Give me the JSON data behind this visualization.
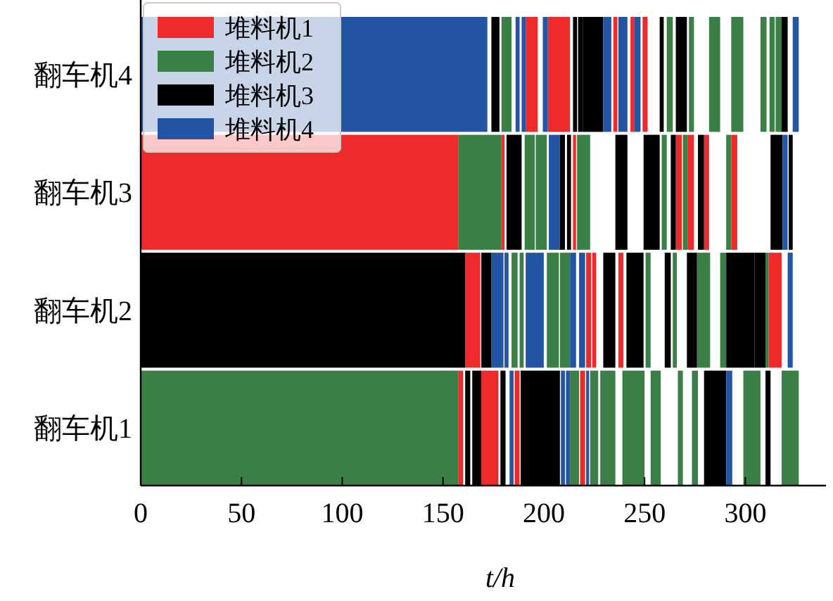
{
  "chart_data": {
    "type": "bar",
    "orientation": "horizontal",
    "xlabel": "t/h",
    "xlim": [
      0,
      340
    ],
    "xticks": [
      0,
      50,
      100,
      150,
      200,
      250,
      300
    ],
    "categories": [
      "翻车机4",
      "翻车机3",
      "翻车机2",
      "翻车机1"
    ],
    "legend": "top left",
    "series": [
      {
        "name": "堆料机1",
        "color": "#ee2a2a",
        "base": [
          191,
          0,
          161,
          157.5
        ],
        "values": [
          6,
          157.5,
          7.5,
          2.5
        ]
      },
      {
        "name": "堆料机2",
        "color": "#3a7f45",
        "base": [
          179,
          157.5,
          184,
          0
        ],
        "values": [
          5,
          21.5,
          3,
          157.5
        ]
      },
      {
        "name": "堆料机3",
        "color": "#000000",
        "base": [
          174,
          181.5,
          0,
          161
        ],
        "values": [
          4,
          7.5,
          161,
          2.5
        ]
      },
      {
        "name": "堆料机4",
        "color": "#2455a4",
        "base": [
          0,
          202.5,
          174,
          183
        ],
        "values": [
          172,
          5.5,
          6,
          2
        ]
      },
      {
        "color": "#ee2a2a",
        "base": [
          202,
          179,
          221,
          169
        ],
        "values": [
          11,
          1.5,
          2.5,
          8.5
        ]
      },
      {
        "color": "#ee2a2a",
        "base": [
          234.5,
          214.5,
          224,
          185.5
        ],
        "values": [
          2,
          1.5,
          2,
          2.5
        ]
      },
      {
        "color": "#ee2a2a",
        "base": [
          243,
          265.5,
          237,
          218
        ],
        "values": [
          2,
          3,
          2.5,
          2.5
        ]
      },
      {
        "color": "#ee2a2a",
        "base": [
          249,
          271.5,
          311.5,
          null
        ],
        "values": [
          2.5,
          3,
          6.5,
          null
        ]
      },
      {
        "color": "#ee2a2a",
        "base": [
          null,
          279.5,
          null,
          null
        ],
        "values": [
          null,
          2.5,
          null,
          null
        ]
      },
      {
        "color": "#ee2a2a",
        "base": [
          null,
          293,
          null,
          null
        ],
        "values": [
          null,
          3,
          null,
          null
        ]
      },
      {
        "color": "#3a7f45",
        "base": [
          261,
          190.5,
          188,
          213
        ],
        "values": [
          3,
          5,
          2,
          4.5
        ]
      },
      {
        "color": "#3a7f45",
        "base": [
          272,
          196,
          201.5,
          223
        ],
        "values": [
          2.5,
          5.5,
          6,
          4
        ]
      },
      {
        "color": "#3a7f45",
        "base": [
          282,
          216.5,
          208,
          228
        ],
        "values": [
          5.5,
          6.5,
          5,
          7.5
        ]
      },
      {
        "color": "#3a7f45",
        "base": [
          293,
          258.5,
          250.5,
          239
        ],
        "values": [
          6,
          2.5,
          2.5,
          11
        ]
      },
      {
        "color": "#3a7f45",
        "base": [
          307.5,
          269,
          264,
          253
        ],
        "values": [
          3,
          2.5,
          2,
          5
        ]
      },
      {
        "color": "#3a7f45",
        "base": [
          312,
          290.5,
          276,
          266.5
        ],
        "values": [
          2.5,
          2.5,
          6.5,
          2.5
        ]
      },
      {
        "color": "#3a7f45",
        "base": [
          315,
          null,
          287.5,
          273.5
        ],
        "values": [
          3,
          null,
          3,
          3
        ]
      },
      {
        "color": "#3a7f45",
        "base": [
          null,
          null,
          310,
          299
        ],
        "values": [
          null,
          null,
          1.5,
          8.5
        ]
      },
      {
        "color": "#3a7f45",
        "base": [
          null,
          null,
          null,
          318
        ],
        "values": [
          null,
          null,
          null,
          8.5
        ]
      },
      {
        "color": "#000000",
        "base": [
          214.5,
          208,
          169,
          164.5
        ],
        "values": [
          2,
          2.5,
          5,
          4.5
        ]
      },
      {
        "color": "#000000",
        "base": [
          217,
          211.5,
          229.5,
          178.5
        ],
        "values": [
          2.5,
          2,
          6,
          2.5
        ]
      },
      {
        "color": "#000000",
        "base": [
          219.5,
          235.5,
          241,
          188.5
        ],
        "values": [
          10,
          6,
          8.5,
          19.5
        ]
      },
      {
        "color": "#000000",
        "base": [
          257.5,
          249.5,
          260,
          279.5
        ],
        "values": [
          2,
          8,
          3,
          11
        ]
      },
      {
        "color": "#000000",
        "base": [
          265.5,
          263,
          271,
          310
        ],
        "values": [
          5.5,
          2.5,
          5,
          2.5
        ]
      },
      {
        "color": "#000000",
        "base": [
          318,
          276.5,
          290.5,
          null
        ],
        "values": [
          3,
          3,
          14,
          null
        ]
      },
      {
        "color": "#000000",
        "base": [
          null,
          312.5,
          304.5,
          null
        ],
        "values": [
          null,
          6,
          5.5,
          null
        ]
      },
      {
        "color": "#000000",
        "base": [
          null,
          321.5,
          null,
          null
        ],
        "values": [
          null,
          2,
          null,
          null
        ]
      },
      {
        "color": "#2455a4",
        "base": [
          186,
          318.5,
          180.5,
          208.5
        ],
        "values": [
          2,
          2.5,
          2,
          2
        ]
      },
      {
        "color": "#2455a4",
        "base": [
          189,
          null,
          191,
          211
        ],
        "values": [
          2,
          null,
          9,
          2
        ]
      },
      {
        "color": "#2455a4",
        "base": [
          199.5,
          null,
          213,
          221
        ],
        "values": [
          2.5,
          null,
          3,
          1.5
        ]
      },
      {
        "color": "#2455a4",
        "base": [
          229.5,
          null,
          217.5,
          290.5
        ],
        "values": [
          4,
          null,
          3,
          3
        ]
      },
      {
        "color": "#2455a4",
        "base": [
          237,
          null,
          321,
          null
        ],
        "values": [
          4.5,
          null,
          2.5,
          null
        ]
      },
      {
        "color": "#2455a4",
        "base": [
          245,
          null,
          null,
          null
        ],
        "values": [
          3,
          null,
          null,
          null
        ]
      },
      {
        "color": "#2455a4",
        "base": [
          323.5,
          null,
          null,
          null
        ],
        "values": [
          3,
          null,
          null,
          null
        ]
      }
    ]
  }
}
